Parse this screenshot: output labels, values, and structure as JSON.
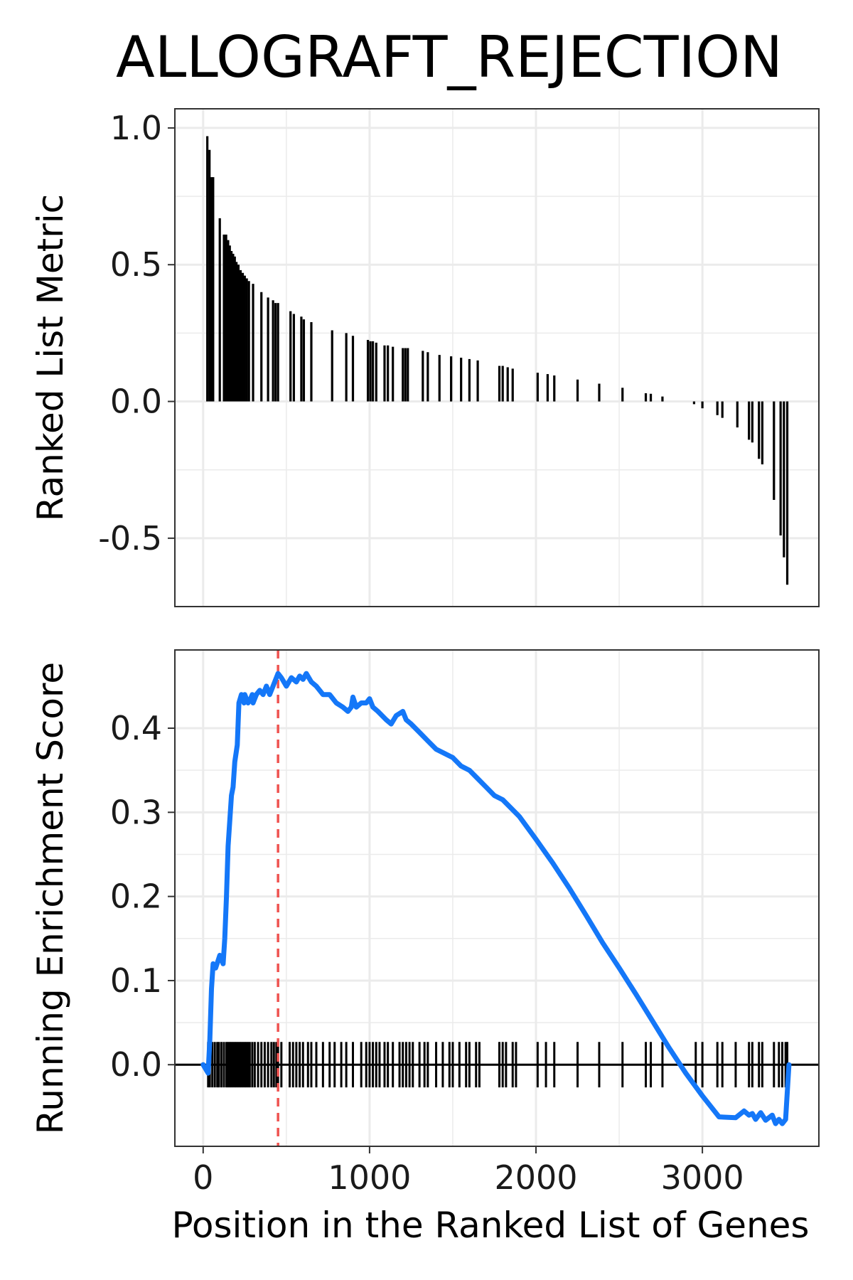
{
  "colors": {
    "curve": "#1477F8",
    "hits": "#000000",
    "peak_line": "#EF5350",
    "grid": "#EBEBEB",
    "panel_border": "#333333"
  },
  "chart_data": {
    "type": "line",
    "title": "ALLOGRAFT_REJECTION",
    "xlabel": "Position in the Ranked List of Genes",
    "xlim": [
      -170,
      3700
    ],
    "x_ticks": [
      0,
      1000,
      2000,
      3000
    ],
    "x_tick_labels": [
      "0",
      "1000",
      "2000",
      "3000"
    ],
    "grid": true,
    "panels": [
      {
        "name": "ranked_metric",
        "ylabel": "Ranked List Metric",
        "type": "bar",
        "ylim": [
          -0.75,
          1.07
        ],
        "y_ticks": [
          1.0,
          0.5,
          0.0,
          -0.5
        ],
        "y_tick_labels": [
          "1.0",
          "0.5",
          "0.0",
          "-0.5"
        ],
        "bars": [
          {
            "x": 25,
            "y": 0.97
          },
          {
            "x": 38,
            "y": 0.92
          },
          {
            "x": 50,
            "y": 0.82
          },
          {
            "x": 60,
            "y": 0.82
          },
          {
            "x": 100,
            "y": 0.67
          },
          {
            "x": 125,
            "y": 0.61
          },
          {
            "x": 138,
            "y": 0.61
          },
          {
            "x": 150,
            "y": 0.59
          },
          {
            "x": 160,
            "y": 0.57
          },
          {
            "x": 170,
            "y": 0.55
          },
          {
            "x": 180,
            "y": 0.54
          },
          {
            "x": 190,
            "y": 0.53
          },
          {
            "x": 200,
            "y": 0.51
          },
          {
            "x": 212,
            "y": 0.5
          },
          {
            "x": 225,
            "y": 0.48
          },
          {
            "x": 238,
            "y": 0.47
          },
          {
            "x": 250,
            "y": 0.46
          },
          {
            "x": 262,
            "y": 0.45
          },
          {
            "x": 275,
            "y": 0.44
          },
          {
            "x": 300,
            "y": 0.43
          },
          {
            "x": 350,
            "y": 0.4
          },
          {
            "x": 390,
            "y": 0.38
          },
          {
            "x": 420,
            "y": 0.37
          },
          {
            "x": 435,
            "y": 0.36
          },
          {
            "x": 450,
            "y": 0.36
          },
          {
            "x": 525,
            "y": 0.33
          },
          {
            "x": 545,
            "y": 0.32
          },
          {
            "x": 590,
            "y": 0.31
          },
          {
            "x": 605,
            "y": 0.3
          },
          {
            "x": 650,
            "y": 0.29
          },
          {
            "x": 775,
            "y": 0.26
          },
          {
            "x": 860,
            "y": 0.25
          },
          {
            "x": 900,
            "y": 0.24
          },
          {
            "x": 990,
            "y": 0.225
          },
          {
            "x": 1005,
            "y": 0.22
          },
          {
            "x": 1020,
            "y": 0.22
          },
          {
            "x": 1040,
            "y": 0.215
          },
          {
            "x": 1090,
            "y": 0.205
          },
          {
            "x": 1110,
            "y": 0.205
          },
          {
            "x": 1140,
            "y": 0.2
          },
          {
            "x": 1200,
            "y": 0.195
          },
          {
            "x": 1215,
            "y": 0.195
          },
          {
            "x": 1230,
            "y": 0.195
          },
          {
            "x": 1320,
            "y": 0.185
          },
          {
            "x": 1350,
            "y": 0.18
          },
          {
            "x": 1420,
            "y": 0.17
          },
          {
            "x": 1490,
            "y": 0.165
          },
          {
            "x": 1550,
            "y": 0.16
          },
          {
            "x": 1600,
            "y": 0.155
          },
          {
            "x": 1650,
            "y": 0.15
          },
          {
            "x": 1780,
            "y": 0.13
          },
          {
            "x": 1800,
            "y": 0.13
          },
          {
            "x": 1830,
            "y": 0.125
          },
          {
            "x": 1860,
            "y": 0.12
          },
          {
            "x": 2010,
            "y": 0.105
          },
          {
            "x": 2070,
            "y": 0.1
          },
          {
            "x": 2110,
            "y": 0.095
          },
          {
            "x": 2250,
            "y": 0.08
          },
          {
            "x": 2380,
            "y": 0.065
          },
          {
            "x": 2520,
            "y": 0.05
          },
          {
            "x": 2660,
            "y": 0.03
          },
          {
            "x": 2690,
            "y": 0.028
          },
          {
            "x": 2760,
            "y": 0.018
          },
          {
            "x": 2950,
            "y": -0.01
          },
          {
            "x": 3000,
            "y": -0.025
          },
          {
            "x": 3090,
            "y": -0.05
          },
          {
            "x": 3120,
            "y": -0.06
          },
          {
            "x": 3210,
            "y": -0.095
          },
          {
            "x": 3280,
            "y": -0.14
          },
          {
            "x": 3300,
            "y": -0.15
          },
          {
            "x": 3340,
            "y": -0.21
          },
          {
            "x": 3360,
            "y": -0.23
          },
          {
            "x": 3430,
            "y": -0.36
          },
          {
            "x": 3470,
            "y": -0.49
          },
          {
            "x": 3490,
            "y": -0.57
          },
          {
            "x": 3510,
            "y": -0.67
          }
        ]
      },
      {
        "name": "running_enrichment",
        "ylabel": "Running Enrichment Score",
        "type": "line",
        "ylim": [
          -0.097,
          0.493
        ],
        "y_ticks": [
          0.4,
          0.3,
          0.2,
          0.1,
          0.0
        ],
        "y_tick_labels": [
          "0.4",
          "0.3",
          "0.2",
          "0.1",
          "0.0"
        ],
        "reference_lines": [
          {
            "axis": "y",
            "value": 0.0,
            "style": "solid"
          }
        ],
        "peak_marker": {
          "x": 450,
          "style": "dashed"
        },
        "hit_band": [
          -0.027,
          0.027
        ],
        "series": [
          {
            "x": [
              0,
              30,
              40,
              50,
              60,
              75,
              100,
              120,
              130,
              140,
              150,
              170,
              180,
              190,
              205,
              215,
              230,
              245,
              250,
              270,
              285,
              295,
              300,
              320,
              340,
              360,
              380,
              400,
              420,
              440,
              450,
              470,
              500,
              530,
              560,
              580,
              600,
              620,
              650,
              680,
              720,
              760,
              800,
              840,
              870,
              890,
              900,
              920,
              950,
              980,
              1000,
              1020,
              1050,
              1100,
              1130,
              1160,
              1200,
              1220,
              1250,
              1300,
              1350,
              1400,
              1450,
              1500,
              1550,
              1600,
              1650,
              1700,
              1750,
              1800,
              1850,
              1900,
              2000,
              2100,
              2200,
              2300,
              2400,
              2500,
              2600,
              2700,
              2800,
              2900,
              3000,
              3100,
              3200,
              3250,
              3280,
              3300,
              3320,
              3350,
              3380,
              3420,
              3440,
              3460,
              3480,
              3500,
              3520
            ],
            "y": [
              0.0,
              -0.01,
              0.03,
              0.09,
              0.12,
              0.115,
              0.13,
              0.12,
              0.15,
              0.2,
              0.26,
              0.32,
              0.33,
              0.36,
              0.38,
              0.43,
              0.44,
              0.43,
              0.44,
              0.43,
              0.435,
              0.44,
              0.43,
              0.44,
              0.445,
              0.44,
              0.45,
              0.44,
              0.45,
              0.46,
              0.465,
              0.46,
              0.45,
              0.46,
              0.455,
              0.462,
              0.458,
              0.465,
              0.455,
              0.45,
              0.44,
              0.44,
              0.43,
              0.425,
              0.42,
              0.425,
              0.437,
              0.425,
              0.43,
              0.43,
              0.435,
              0.425,
              0.42,
              0.41,
              0.405,
              0.415,
              0.42,
              0.41,
              0.405,
              0.395,
              0.385,
              0.375,
              0.37,
              0.365,
              0.355,
              0.35,
              0.34,
              0.33,
              0.32,
              0.315,
              0.305,
              0.295,
              0.268,
              0.24,
              0.21,
              0.178,
              0.145,
              0.115,
              0.084,
              0.052,
              0.02,
              -0.01,
              -0.037,
              -0.062,
              -0.063,
              -0.055,
              -0.06,
              -0.058,
              -0.065,
              -0.057,
              -0.066,
              -0.06,
              -0.07,
              -0.065,
              -0.07,
              -0.065,
              0.0
            ]
          }
        ],
        "hit_positions": [
          30,
          40,
          55,
          70,
          85,
          95,
          110,
          125,
          140,
          150,
          160,
          170,
          180,
          190,
          200,
          210,
          220,
          230,
          240,
          250,
          260,
          270,
          280,
          295,
          310,
          330,
          350,
          370,
          390,
          410,
          425,
          440,
          450,
          470,
          520,
          540,
          560,
          580,
          600,
          630,
          650,
          680,
          720,
          760,
          790,
          830,
          860,
          900,
          950,
          980,
          1000,
          1020,
          1040,
          1060,
          1090,
          1110,
          1140,
          1180,
          1200,
          1220,
          1240,
          1260,
          1300,
          1330,
          1350,
          1400,
          1440,
          1480,
          1500,
          1540,
          1580,
          1600,
          1640,
          1660,
          1780,
          1800,
          1820,
          1860,
          1880,
          2010,
          2060,
          2110,
          2250,
          2380,
          2520,
          2660,
          2690,
          2760,
          2960,
          3000,
          3090,
          3120,
          3200,
          3280,
          3300,
          3340,
          3360,
          3430,
          3460,
          3480,
          3500,
          3510
        ]
      }
    ]
  }
}
